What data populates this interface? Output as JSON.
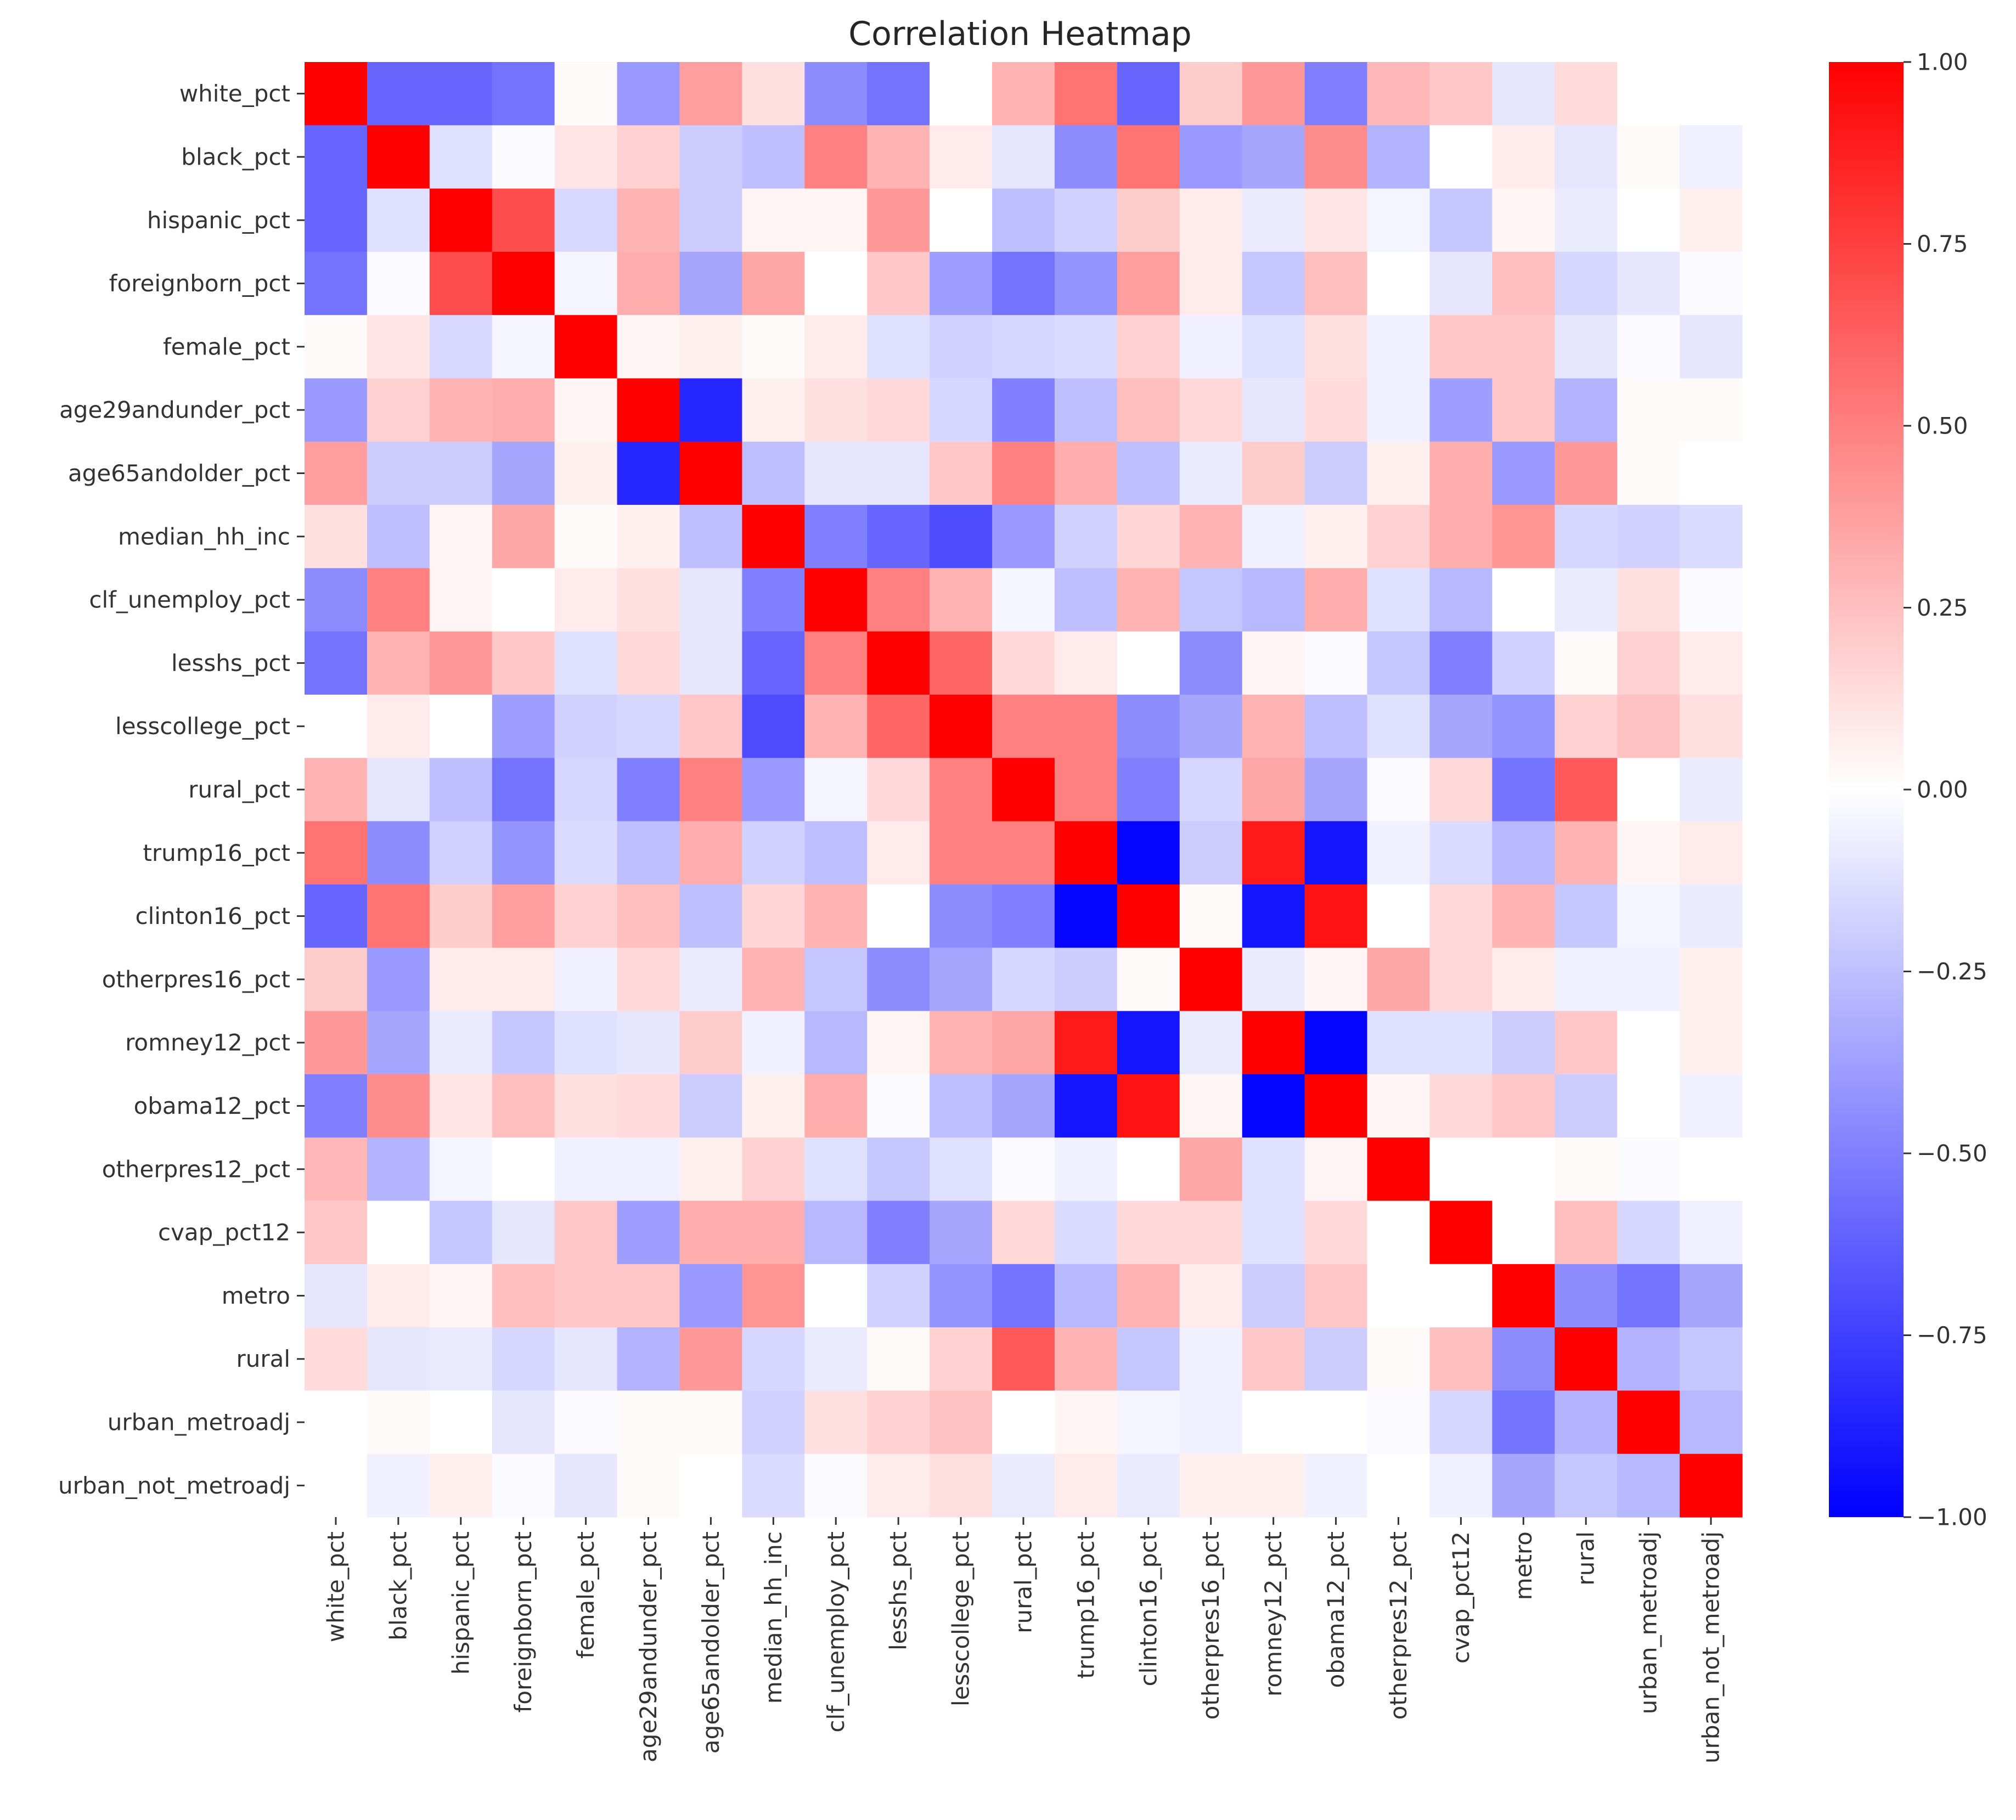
{
  "chart_data": {
    "type": "heatmap",
    "title": "Correlation Heatmap",
    "xlabel": "",
    "ylabel": "",
    "labels": [
      "white_pct",
      "black_pct",
      "hispanic_pct",
      "foreignborn_pct",
      "female_pct",
      "age29andunder_pct",
      "age65andolder_pct",
      "median_hh_inc",
      "clf_unemploy_pct",
      "lesshs_pct",
      "lesscollege_pct",
      "rural_pct",
      "trump16_pct",
      "clinton16_pct",
      "otherpres16_pct",
      "romney12_pct",
      "obama12_pct",
      "otherpres12_pct",
      "cvap_pct12",
      "metro",
      "rural",
      "urban_metroadj",
      "urban_not_metroadj"
    ],
    "matrix": [
      [
        1.0,
        -0.6,
        -0.6,
        -0.55,
        0.02,
        -0.4,
        0.38,
        0.12,
        -0.45,
        -0.55,
        0.0,
        0.3,
        0.55,
        -0.6,
        0.2,
        0.4,
        -0.5,
        0.28,
        0.22,
        -0.1,
        0.14,
        0.0,
        0.0
      ],
      [
        -0.6,
        1.0,
        -0.12,
        -0.02,
        0.1,
        0.18,
        -0.2,
        -0.25,
        0.5,
        0.3,
        0.08,
        -0.1,
        -0.45,
        0.55,
        -0.4,
        -0.35,
        0.45,
        -0.3,
        0.0,
        0.08,
        -0.1,
        0.02,
        -0.06
      ],
      [
        -0.6,
        -0.12,
        1.0,
        0.7,
        -0.15,
        0.3,
        -0.2,
        0.04,
        0.04,
        0.4,
        0.0,
        -0.25,
        -0.18,
        0.2,
        0.08,
        -0.08,
        0.1,
        -0.04,
        -0.22,
        0.04,
        -0.08,
        0.0,
        0.06
      ],
      [
        -0.55,
        -0.02,
        0.7,
        1.0,
        -0.04,
        0.32,
        -0.35,
        0.35,
        0.0,
        0.22,
        -0.38,
        -0.55,
        -0.42,
        0.38,
        0.08,
        -0.22,
        0.25,
        0.0,
        -0.1,
        0.25,
        -0.16,
        -0.1,
        -0.02
      ],
      [
        0.02,
        0.1,
        -0.15,
        -0.04,
        1.0,
        0.04,
        0.06,
        0.02,
        0.08,
        -0.12,
        -0.18,
        -0.16,
        -0.14,
        0.18,
        -0.06,
        -0.12,
        0.12,
        -0.06,
        0.22,
        0.22,
        -0.1,
        -0.02,
        -0.1
      ],
      [
        -0.4,
        0.18,
        0.3,
        0.32,
        0.04,
        1.0,
        -0.85,
        0.06,
        0.12,
        0.15,
        -0.16,
        -0.5,
        -0.25,
        0.25,
        0.15,
        -0.1,
        0.14,
        -0.06,
        -0.38,
        0.22,
        -0.3,
        0.02,
        0.02
      ],
      [
        0.38,
        -0.2,
        -0.2,
        -0.35,
        0.06,
        -0.85,
        1.0,
        -0.25,
        -0.1,
        -0.1,
        0.22,
        0.5,
        0.32,
        -0.25,
        -0.08,
        0.2,
        -0.2,
        0.06,
        0.32,
        -0.4,
        0.4,
        0.02,
        0.0
      ],
      [
        0.12,
        -0.25,
        0.04,
        0.35,
        0.02,
        0.06,
        -0.25,
        1.0,
        -0.5,
        -0.6,
        -0.7,
        -0.4,
        -0.18,
        0.16,
        0.3,
        -0.06,
        0.06,
        0.18,
        0.32,
        0.42,
        -0.16,
        -0.18,
        -0.14
      ],
      [
        -0.45,
        0.5,
        0.04,
        0.0,
        0.08,
        0.12,
        -0.1,
        -0.5,
        1.0,
        0.5,
        0.3,
        -0.04,
        -0.25,
        0.3,
        -0.22,
        -0.28,
        0.32,
        -0.12,
        -0.28,
        0.0,
        -0.08,
        0.12,
        -0.02
      ],
      [
        -0.55,
        0.3,
        0.4,
        0.22,
        -0.12,
        0.15,
        -0.1,
        -0.6,
        0.5,
        1.0,
        0.6,
        0.15,
        0.08,
        0.0,
        -0.45,
        0.04,
        -0.02,
        -0.22,
        -0.5,
        -0.18,
        0.02,
        0.18,
        0.08
      ],
      [
        0.0,
        0.08,
        0.0,
        -0.38,
        -0.18,
        -0.16,
        0.22,
        -0.7,
        0.3,
        0.6,
        1.0,
        0.5,
        0.5,
        -0.45,
        -0.35,
        0.3,
        -0.25,
        -0.12,
        -0.35,
        -0.42,
        0.18,
        0.24,
        0.12
      ],
      [
        0.3,
        -0.1,
        -0.25,
        -0.55,
        -0.16,
        -0.5,
        0.5,
        -0.4,
        -0.04,
        0.15,
        0.5,
        1.0,
        0.5,
        -0.5,
        -0.16,
        0.35,
        -0.35,
        -0.02,
        0.15,
        -0.55,
        0.65,
        0.0,
        -0.08
      ],
      [
        0.55,
        -0.45,
        -0.18,
        -0.42,
        -0.14,
        -0.25,
        0.32,
        -0.18,
        -0.25,
        0.08,
        0.5,
        0.5,
        1.0,
        -0.98,
        -0.2,
        0.9,
        -0.92,
        -0.06,
        -0.14,
        -0.28,
        0.3,
        0.04,
        0.08
      ],
      [
        -0.6,
        0.55,
        0.2,
        0.38,
        0.18,
        0.25,
        -0.25,
        0.16,
        0.3,
        0.0,
        -0.45,
        -0.5,
        -0.98,
        1.0,
        0.02,
        -0.92,
        0.93,
        0.0,
        0.15,
        0.3,
        -0.22,
        -0.04,
        -0.08
      ],
      [
        0.2,
        -0.4,
        0.08,
        0.08,
        -0.06,
        0.15,
        -0.08,
        0.3,
        -0.22,
        -0.45,
        -0.35,
        -0.16,
        -0.2,
        0.02,
        1.0,
        -0.08,
        0.04,
        0.35,
        0.15,
        0.08,
        -0.06,
        -0.06,
        0.06
      ],
      [
        0.4,
        -0.35,
        -0.08,
        -0.22,
        -0.12,
        -0.1,
        0.2,
        -0.06,
        -0.28,
        0.04,
        0.3,
        0.35,
        0.9,
        -0.92,
        -0.08,
        1.0,
        -0.98,
        -0.12,
        -0.12,
        -0.2,
        0.22,
        0.0,
        0.06
      ],
      [
        -0.5,
        0.45,
        0.1,
        0.25,
        0.12,
        0.14,
        -0.2,
        0.06,
        0.32,
        -0.02,
        -0.25,
        -0.35,
        -0.92,
        0.93,
        0.04,
        -0.98,
        1.0,
        0.04,
        0.15,
        0.22,
        -0.2,
        0.0,
        -0.06
      ],
      [
        0.28,
        -0.3,
        -0.04,
        0.0,
        -0.06,
        -0.06,
        0.06,
        0.18,
        -0.12,
        -0.22,
        -0.12,
        -0.02,
        -0.06,
        0.0,
        0.35,
        -0.12,
        0.04,
        1.0,
        0.0,
        0.0,
        0.02,
        -0.02,
        0.0
      ],
      [
        0.22,
        0.0,
        -0.22,
        -0.1,
        0.22,
        -0.38,
        0.32,
        0.32,
        -0.28,
        -0.5,
        -0.35,
        0.15,
        -0.14,
        0.15,
        0.15,
        -0.12,
        0.15,
        0.0,
        1.0,
        0.0,
        0.25,
        -0.16,
        -0.06
      ],
      [
        -0.1,
        0.08,
        0.04,
        0.25,
        0.22,
        0.22,
        -0.4,
        0.42,
        0.0,
        -0.18,
        -0.42,
        -0.55,
        -0.28,
        0.3,
        0.08,
        -0.2,
        0.22,
        0.0,
        0.0,
        1.0,
        -0.45,
        -0.55,
        -0.35
      ],
      [
        0.14,
        -0.1,
        -0.08,
        -0.16,
        -0.1,
        -0.3,
        0.4,
        -0.16,
        -0.08,
        0.02,
        0.18,
        0.65,
        0.3,
        -0.22,
        -0.06,
        0.22,
        -0.2,
        0.02,
        0.25,
        -0.45,
        1.0,
        -0.3,
        -0.22
      ],
      [
        0.0,
        0.02,
        0.0,
        -0.1,
        -0.02,
        0.02,
        0.02,
        -0.18,
        0.12,
        0.18,
        0.24,
        0.0,
        0.04,
        -0.04,
        -0.06,
        0.0,
        0.0,
        -0.02,
        -0.16,
        -0.55,
        -0.3,
        1.0,
        -0.28
      ],
      [
        0.0,
        -0.06,
        0.06,
        -0.02,
        -0.1,
        0.02,
        0.0,
        -0.14,
        -0.02,
        0.08,
        0.12,
        -0.08,
        0.08,
        -0.08,
        0.06,
        0.06,
        -0.06,
        0.0,
        -0.06,
        -0.35,
        -0.22,
        -0.28,
        1.0
      ]
    ],
    "colormap": "bwr",
    "colormap_colors": [
      "#0000ff",
      "#ffffff",
      "#ff0000"
    ],
    "vmin": -1.0,
    "vmax": 1.0,
    "colorbar_ticks": [
      1.0,
      0.75,
      0.5,
      0.25,
      0.0,
      -0.25,
      -0.5,
      -0.75,
      -1.0
    ],
    "colorbar_tick_labels": [
      "1.00",
      "0.75",
      "0.50",
      "0.25",
      "0.00",
      "−0.25",
      "−0.50",
      "−0.75",
      "−1.00"
    ],
    "legend_position": "right"
  }
}
